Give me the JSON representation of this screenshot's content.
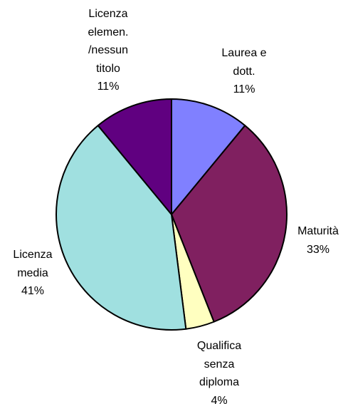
{
  "chart_data": {
    "type": "pie",
    "categories": [
      "Laurea e\ndott.",
      "Maturità",
      "Qualifica\nsenza\ndiploma",
      "Licenza\nmedia",
      "Licenza\nelemen.\n/nessun\ntitolo"
    ],
    "values": [
      11,
      33,
      4,
      41,
      11
    ],
    "value_labels": [
      "11%",
      "33%",
      "4%",
      "41%",
      "11%"
    ],
    "colors": [
      "#8080ff",
      "#802060",
      "#ffffc0",
      "#a0e0e0",
      "#600080"
    ]
  }
}
